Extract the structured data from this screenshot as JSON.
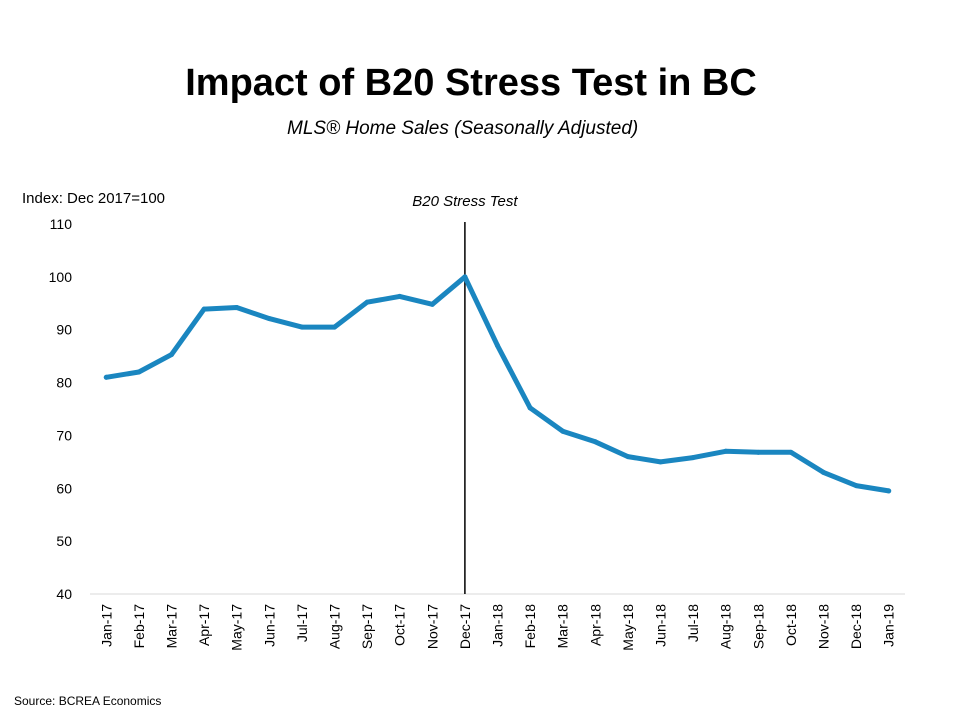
{
  "chart_data": {
    "type": "line",
    "title": "Impact of B20 Stress Test in BC",
    "subtitle": "MLS® Home Sales (Seasonally Adjusted)",
    "ylabel": "Index: Dec 2017=100",
    "xlabel": "",
    "ylim": [
      40,
      110
    ],
    "yticks": [
      110,
      100,
      90,
      80,
      70,
      60,
      50,
      40
    ],
    "grid": false,
    "legend": "none",
    "categories": [
      "Jan-17",
      "Feb-17",
      "Mar-17",
      "Apr-17",
      "May-17",
      "Jun-17",
      "Jul-17",
      "Aug-17",
      "Sep-17",
      "Oct-17",
      "Nov-17",
      "Dec-17",
      "Jan-18",
      "Feb-18",
      "Mar-18",
      "Apr-18",
      "May-18",
      "Jun-18",
      "Jul-18",
      "Aug-18",
      "Sep-18",
      "Oct-18",
      "Nov-18",
      "Dec-18",
      "Jan-19"
    ],
    "series": [
      {
        "name": "MLS Home Sales Index",
        "color": "#1a86c0",
        "values": [
          81,
          82,
          85.3,
          93.9,
          94.2,
          92.1,
          90.5,
          90.5,
          95.2,
          96.3,
          94.8,
          100,
          87,
          75.2,
          70.8,
          68.8,
          66,
          65,
          65.8,
          67,
          66.8,
          66.8,
          63,
          60.5,
          59.5
        ]
      }
    ],
    "annotations": [
      {
        "label": "B20 Stress Test",
        "category": "Dec-17"
      }
    ]
  },
  "source": "Source: BCREA Economics"
}
